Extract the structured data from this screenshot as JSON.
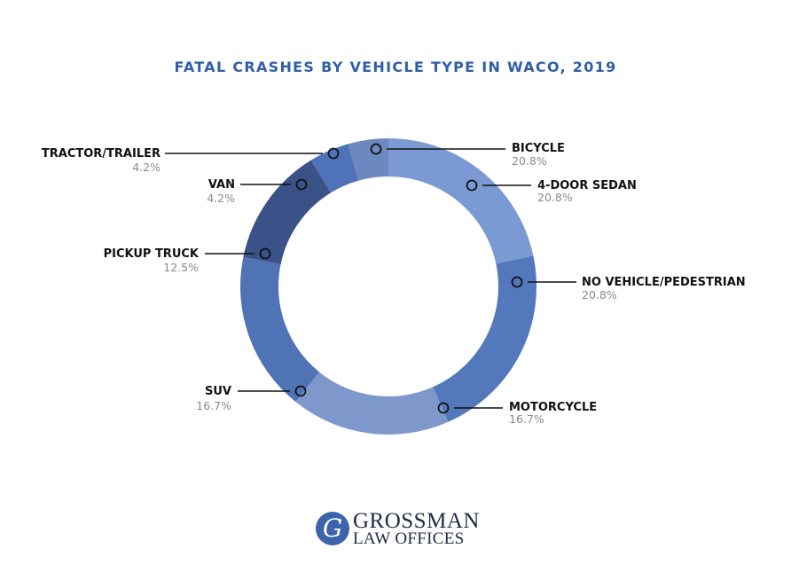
{
  "chart_data": {
    "type": "pie",
    "title": "FATAL CRASHES BY VEHICLE TYPE IN WACO, 2019",
    "slices": [
      {
        "label": "BICYCLE",
        "value": 20.8,
        "value_label": "20.8%",
        "color": "#7b9ad3"
      },
      {
        "label": "NO VEHICLE/PEDESTRIAN",
        "value": 20.8,
        "value_label": "20.8%",
        "color": "#5478bc"
      },
      {
        "label": "MOTORCYCLE",
        "value": 16.7,
        "value_label": "16.7%",
        "color": "#7e98cc"
      },
      {
        "label": "SUV",
        "value": 16.7,
        "value_label": "16.7%",
        "color": "#5073b6"
      },
      {
        "label": "PICKUP TRUCK",
        "value": 12.5,
        "value_label": "12.5%",
        "color": "#3a5287"
      },
      {
        "label": "VAN",
        "value": 4.2,
        "value_label": "4.2%",
        "color": "#4f72b8"
      },
      {
        "label": "TRACTOR/TRAILER",
        "value": 4.2,
        "value_label": "4.2%",
        "color": "#6b88bf"
      }
    ],
    "extra_labels": [
      {
        "label": "4-DOOR SEDAN",
        "value_label": "20.8%"
      }
    ]
  },
  "logo": {
    "mark": "G",
    "line1": "GROSSMAN",
    "line2": "LAW OFFICES"
  }
}
